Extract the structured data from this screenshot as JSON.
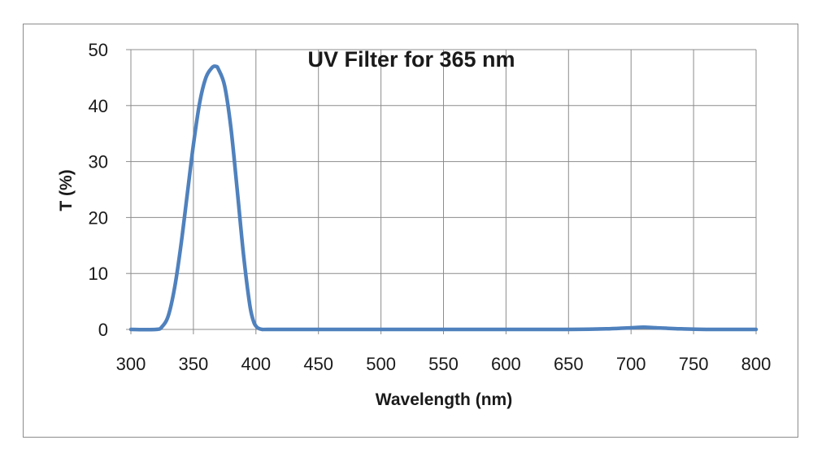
{
  "chart_data": {
    "type": "line",
    "title": "UV Filter for 365 nm",
    "xlabel": "Wavelength (nm)",
    "ylabel": "T (%)",
    "xlim": [
      300,
      800
    ],
    "ylim": [
      0,
      50
    ],
    "xticks": [
      "300",
      "350",
      "400",
      "450",
      "500",
      "550",
      "600",
      "650",
      "700",
      "750",
      "800"
    ],
    "yticks": [
      "0",
      "10",
      "20",
      "30",
      "40",
      "50"
    ],
    "grid": true,
    "legend": "none",
    "series": [
      {
        "color": "#4f81bd",
        "x": [
          300,
          320,
          325,
          330,
          335,
          340,
          345,
          350,
          355,
          360,
          365,
          368,
          370,
          375,
          380,
          385,
          390,
          395,
          398,
          400,
          402,
          405,
          410,
          450,
          500,
          550,
          600,
          650,
          680,
          700,
          710,
          720,
          740,
          760,
          800
        ],
        "y": [
          0,
          0,
          0.5,
          2.5,
          7.5,
          15,
          24,
          33,
          40.5,
          45,
          46.8,
          47,
          46.5,
          43.5,
          36,
          25,
          13.5,
          4.5,
          1.5,
          0.6,
          0.2,
          0,
          0,
          0,
          0,
          0,
          0,
          0,
          0.1,
          0.3,
          0.4,
          0.3,
          0.1,
          0,
          0
        ]
      }
    ]
  }
}
